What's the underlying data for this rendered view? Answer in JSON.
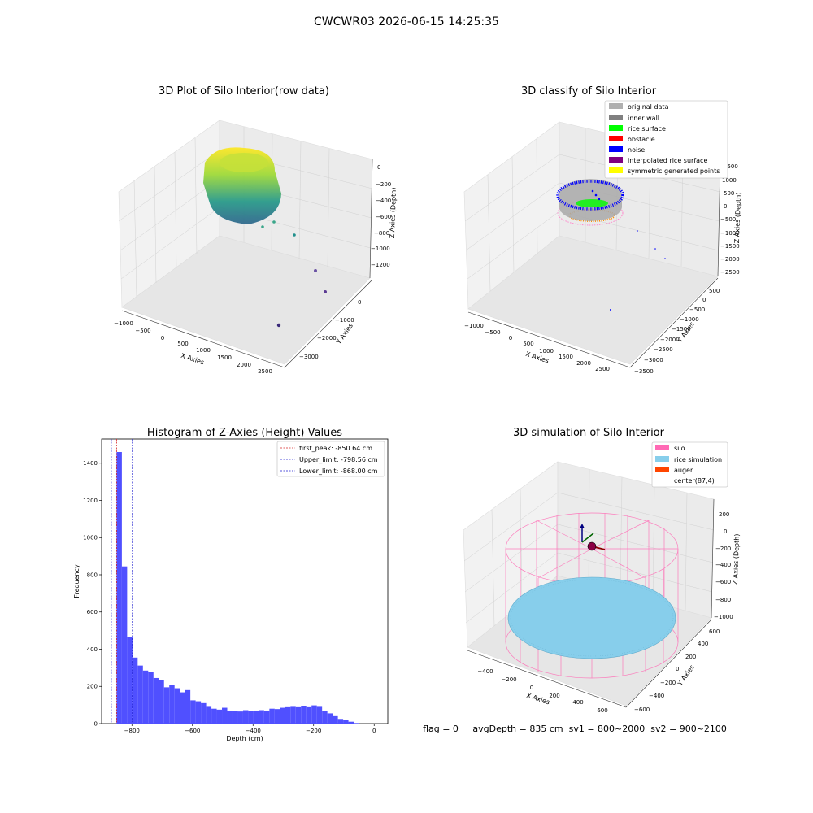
{
  "suptitle": "CWCWR03 2026-06-15 14:25:35",
  "footer": "flag = 0     avgDepth = 835 cm  sv1 = 800~2000  sv2 = 900~2100",
  "colors": {
    "hist_bar": "#5050ff",
    "first_peak": "#d62728",
    "limits": "#1f1fcf",
    "silo": "#ff69b4",
    "rice_simulation": "#87ceeb",
    "auger": "#ff4500",
    "original": "#b0b0b0",
    "inner_wall": "#808080",
    "rice_surface": "#00ff00",
    "obstacle": "#ff0000",
    "noise": "#0000ff",
    "interpolated": "#800080",
    "symmetric": "#ffff00"
  },
  "panel1": {
    "title": "3D Plot of Silo Interior(row data)",
    "xlabel": "X Axies",
    "ylabel": "Y Axies",
    "zlabel": "Z Axies (Depth)",
    "xticks": [
      "−1000",
      "−500",
      "0",
      "500",
      "1000",
      "1500",
      "2000",
      "2500"
    ],
    "yticks": [
      "0",
      "−1000",
      "−2000",
      "−3000"
    ],
    "zticks": [
      "0",
      "−200",
      "−400",
      "−600",
      "−800",
      "−1000",
      "−1200"
    ]
  },
  "panel2": {
    "title": "3D classify of Silo Interior",
    "xlabel": "X Axies",
    "ylabel": "Y Axies",
    "zlabel": "Z Axies (Depth)",
    "xticks": [
      "−1000",
      "−500",
      "0",
      "500",
      "1000",
      "1500",
      "2000",
      "2500"
    ],
    "yticks": [
      "500",
      "0",
      "−500",
      "−1000",
      "−1500",
      "−2000",
      "−2500",
      "−3000",
      "−3500"
    ],
    "zticks": [
      "1500",
      "1000",
      "500",
      "0",
      "−500",
      "−1000",
      "−1500",
      "−2000",
      "−2500"
    ],
    "legend": [
      {
        "label": "original data",
        "color": "#b0b0b0"
      },
      {
        "label": "inner wall",
        "color": "#808080"
      },
      {
        "label": "rice surface",
        "color": "#00ff00"
      },
      {
        "label": "obstacle",
        "color": "#ff0000"
      },
      {
        "label": "noise",
        "color": "#0000ff"
      },
      {
        "label": "interpolated rice surface",
        "color": "#800080"
      },
      {
        "label": "symmetric generated points",
        "color": "#ffff00"
      }
    ]
  },
  "panel4": {
    "title": "3D simulation of Silo Interior",
    "xlabel": "X Axies",
    "ylabel": "Y Axies",
    "zlabel": "Z Axies (Depth)",
    "xticks": [
      "−400",
      "−200",
      "0",
      "200",
      "400",
      "600"
    ],
    "yticks": [
      "600",
      "400",
      "200",
      "0",
      "−200",
      "−400",
      "−600"
    ],
    "zticks": [
      "200",
      "0",
      "−200",
      "−400",
      "−600",
      "−800",
      "−1000"
    ],
    "legend": [
      {
        "label": "silo",
        "color": "#ff69b4"
      },
      {
        "label": "rice simulation",
        "color": "#87ceeb"
      },
      {
        "label": "auger",
        "color": "#ff4500"
      },
      {
        "label": "center(87,4)",
        "color": ""
      }
    ]
  },
  "chart_data": {
    "type": "bar",
    "title": "Histogram of Z-Axies (Height) Values",
    "xlabel": "Depth (cm)",
    "ylabel": "Frequency",
    "xlim": [
      -900,
      45
    ],
    "ylim": [
      0,
      1530
    ],
    "xticks": [
      -800,
      -600,
      -400,
      -200,
      0
    ],
    "yticks": [
      0,
      200,
      400,
      600,
      800,
      1000,
      1200,
      1400
    ],
    "bin_start": -868,
    "bin_width": 17.4,
    "values": [
      0,
      1460,
      845,
      465,
      355,
      312,
      285,
      278,
      245,
      235,
      195,
      208,
      190,
      168,
      180,
      125,
      120,
      110,
      90,
      80,
      75,
      85,
      70,
      68,
      65,
      72,
      68,
      70,
      72,
      70,
      80,
      78,
      85,
      88,
      90,
      88,
      92,
      88,
      98,
      90,
      70,
      55,
      40,
      25,
      18,
      10,
      3,
      0
    ],
    "vlines": [
      {
        "name": "first_peak: -850.64 cm",
        "x": -850.64,
        "color": "#d62728"
      },
      {
        "name": "Upper_limit: -798.56 cm",
        "x": -798.56,
        "color": "#1f1fcf"
      },
      {
        "name": "Lower_limit: -868.00 cm",
        "x": -868.0,
        "color": "#1f1fcf"
      }
    ],
    "legend_position": "top-right"
  }
}
